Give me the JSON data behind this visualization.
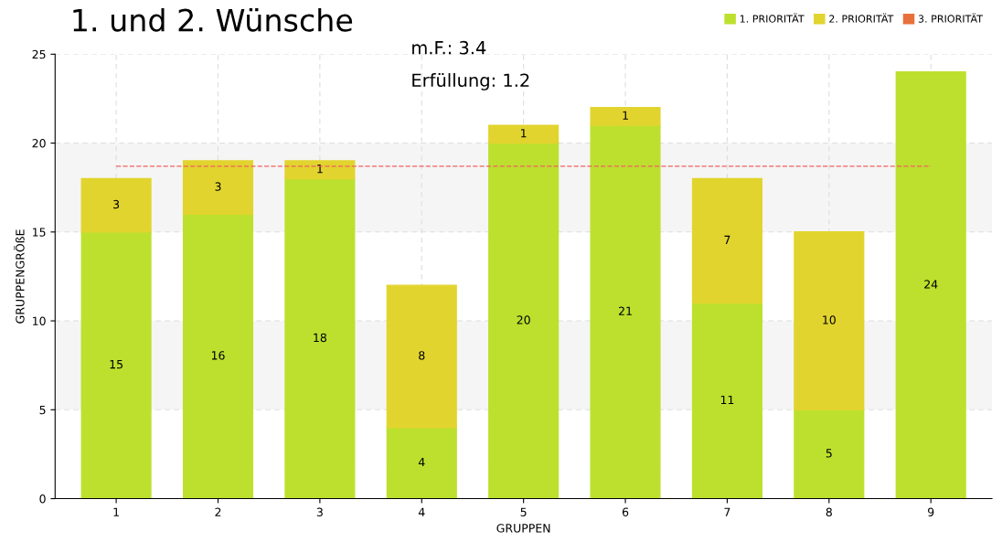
{
  "chart_data": {
    "type": "bar",
    "title": "1. und 2. Wünsche",
    "xlabel": "GRUPPEN",
    "ylabel": "GRUPPENGRÖßE",
    "annotations": [
      "m.F.: 3.4",
      "Erfüllung: 1.2"
    ],
    "categories": [
      "1",
      "2",
      "3",
      "4",
      "5",
      "6",
      "7",
      "8",
      "9"
    ],
    "stacked": true,
    "series": [
      {
        "name": "1. PRIORITÄT",
        "color": "#bde02e",
        "values": [
          15,
          16,
          18,
          4,
          20,
          21,
          11,
          5,
          24
        ]
      },
      {
        "name": "2. PRIORITÄT",
        "color": "#e2d42e",
        "values": [
          3,
          3,
          1,
          8,
          1,
          1,
          7,
          10,
          null
        ]
      },
      {
        "name": "3. PRIORITÄT",
        "color": "#e8703a",
        "values": [
          null,
          null,
          null,
          null,
          null,
          null,
          null,
          null,
          null
        ]
      }
    ],
    "ylim": [
      0,
      25
    ],
    "yticks": [
      0,
      5,
      10,
      15,
      20,
      25
    ],
    "ref_lines": [
      {
        "axis": "y",
        "value": 18.7,
        "color": "#f06060",
        "line_style": "dashed"
      }
    ],
    "bands": [
      {
        "axis": "y",
        "from": 5,
        "to": 10,
        "color": "#f5f5f5"
      },
      {
        "axis": "y",
        "from": 15,
        "to": 20,
        "color": "#f5f5f5"
      }
    ],
    "data_labels": true,
    "grid": true,
    "legend": "top right"
  }
}
